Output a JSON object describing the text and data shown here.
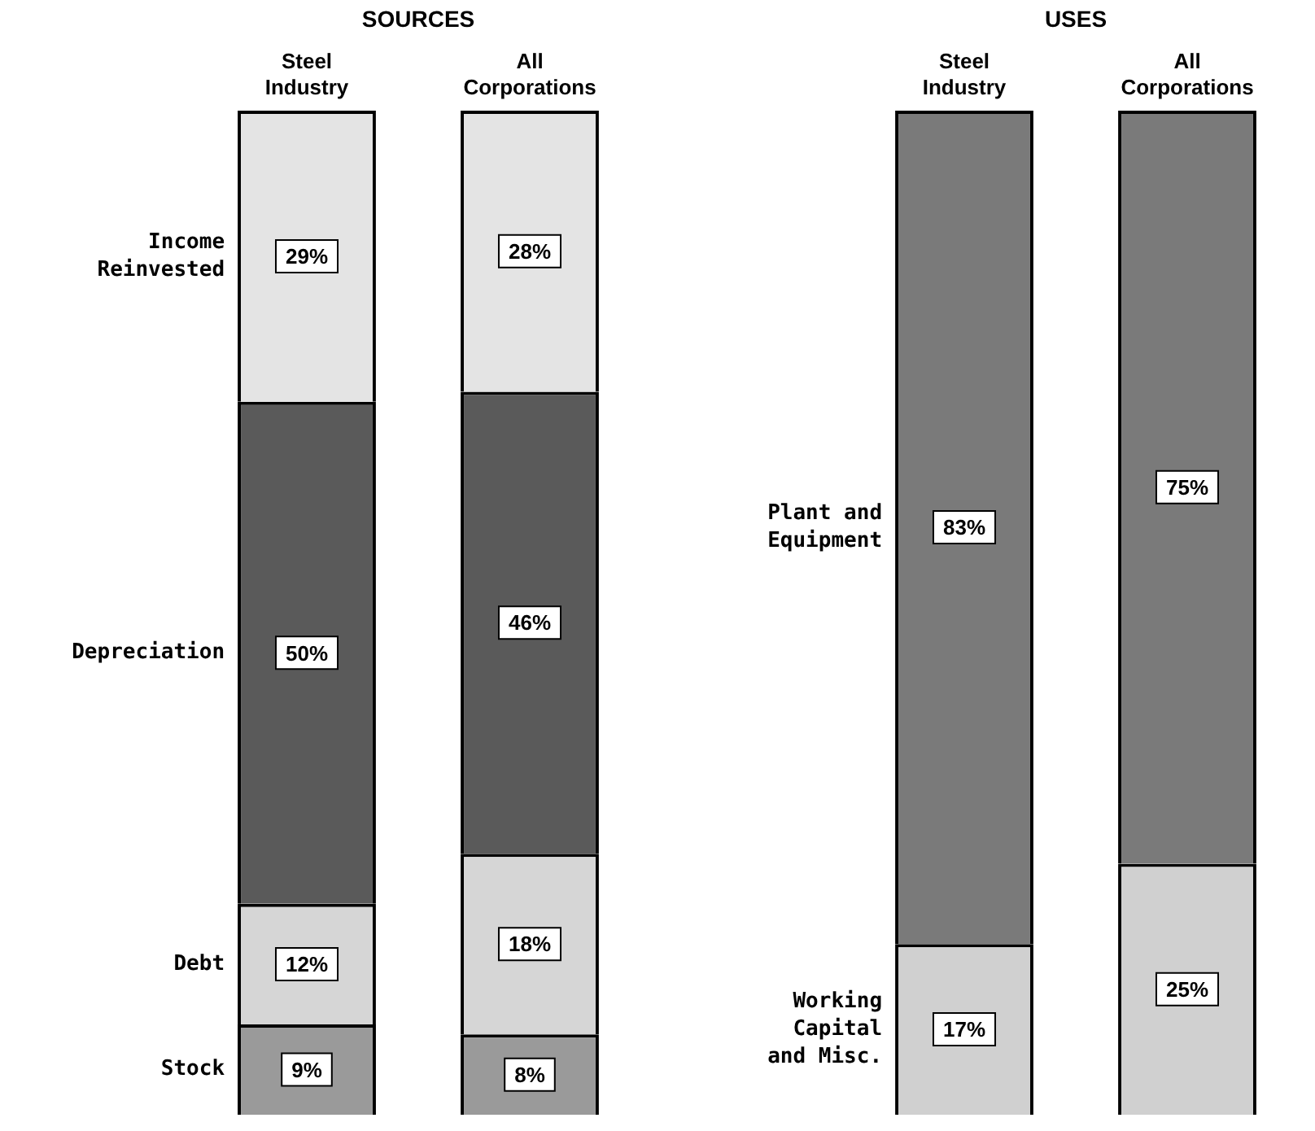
{
  "chart_data": [
    {
      "type": "bar",
      "title": "SOURCES",
      "categories": [
        "Steel Industry",
        "All Corporations"
      ],
      "stacked": true,
      "legend": false,
      "grid": false,
      "tick_labels": "x",
      "series": [
        {
          "name": "Stock",
          "color": "#9a9a9a",
          "values": [
            9,
            8
          ],
          "value_labels": [
            "9%",
            "8%"
          ]
        },
        {
          "name": "Debt",
          "color": "#d6d6d6",
          "values": [
            12,
            18
          ],
          "value_labels": [
            "12%",
            "18%"
          ]
        },
        {
          "name": "Depreciation",
          "color": "#5a5a5a",
          "values": [
            50,
            46
          ],
          "value_labels": [
            "50%",
            "46%"
          ]
        },
        {
          "name": "Income Reinvested",
          "color": "#e4e4e4",
          "values": [
            29,
            28
          ],
          "value_labels": [
            "29%",
            "28%"
          ]
        }
      ]
    },
    {
      "type": "bar",
      "title": "USES",
      "categories": [
        "Steel Industry",
        "All Corporations"
      ],
      "stacked": true,
      "legend": false,
      "grid": false,
      "tick_labels": "x",
      "series": [
        {
          "name": "Working Capital and Misc.",
          "color": "#d0d0d0",
          "values": [
            17,
            25
          ],
          "value_labels": [
            "17%",
            "25%"
          ]
        },
        {
          "name": "Plant and Equipment",
          "color": "#7a7a7a",
          "values": [
            83,
            75
          ],
          "value_labels": [
            "83%",
            "75%"
          ]
        }
      ]
    }
  ]
}
